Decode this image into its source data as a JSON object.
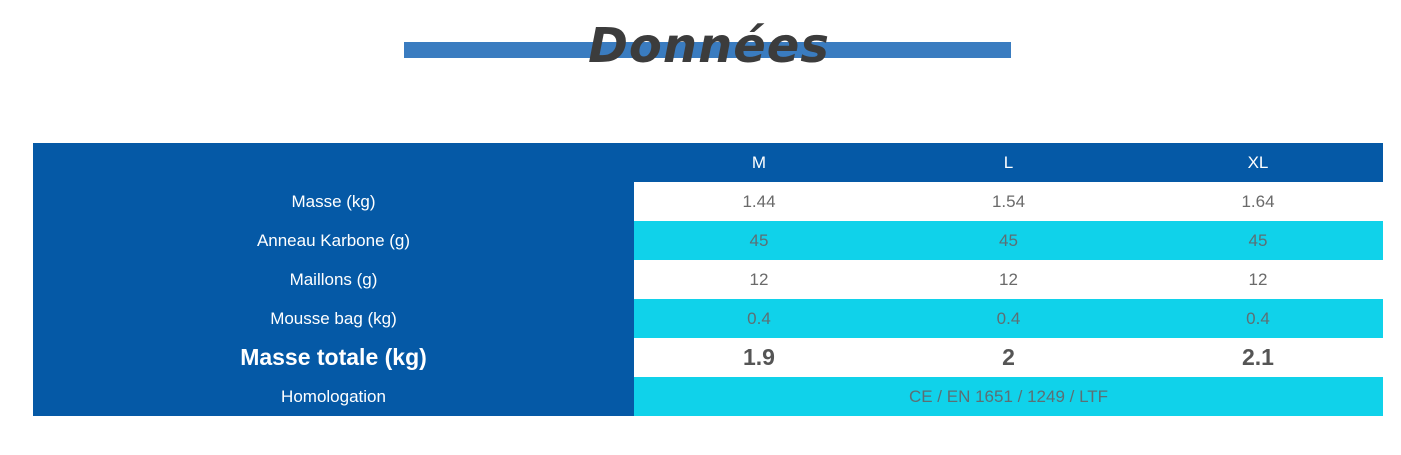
{
  "title": "Données",
  "table": {
    "columns": [
      "",
      "M",
      "L",
      "XL"
    ],
    "rows": [
      {
        "label": "Masse (kg)",
        "values": [
          "1.44",
          "1.54",
          "1.64"
        ]
      },
      {
        "label": "Anneau Karbone (g)",
        "values": [
          "45",
          "45",
          "45"
        ]
      },
      {
        "label": "Maillons (g)",
        "values": [
          "12",
          "12",
          "12"
        ]
      },
      {
        "label": "Mousse bag (kg)",
        "values": [
          "0.4",
          "0.4",
          "0.4"
        ]
      },
      {
        "label": "Masse totale (kg)",
        "values": [
          "1.9",
          "2",
          "2.1"
        ]
      },
      {
        "label": "Homologation",
        "value": "CE / EN 1651 / 1249 / LTF"
      }
    ]
  },
  "colors": {
    "header_blue": "#0559a6",
    "title_bar_blue": "#3a7cc0",
    "row_cyan": "#10d2ea",
    "title_text": "#3c3c3c"
  }
}
